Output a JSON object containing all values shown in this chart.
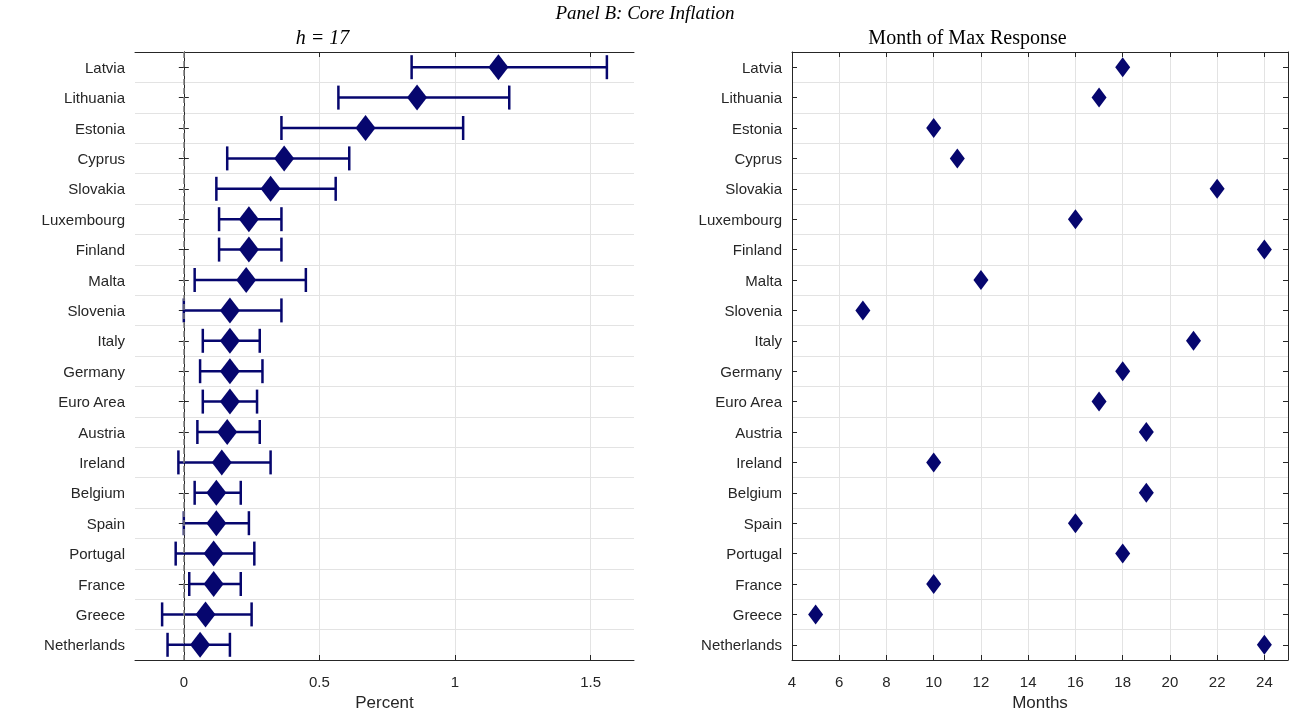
{
  "chart_data": [
    {
      "type": "scatter",
      "title": "h = 17",
      "xlabel": "Percent",
      "orientation": "horizontal",
      "annotations": [
        "Panel B: Core Inflation"
      ],
      "categories": [
        "Latvia",
        "Lithuania",
        "Estonia",
        "Cyprus",
        "Slovakia",
        "Luxembourg",
        "Finland",
        "Malta",
        "Slovenia",
        "Italy",
        "Germany",
        "Euro Area",
        "Austria",
        "Ireland",
        "Belgium",
        "Spain",
        "Portugal",
        "France",
        "Greece",
        "Netherlands"
      ],
      "series": [
        {
          "color": "#06066e",
          "values": [
            1.16,
            0.86,
            0.67,
            0.37,
            0.32,
            0.24,
            0.24,
            0.23,
            0.17,
            0.17,
            0.17,
            0.17,
            0.16,
            0.14,
            0.12,
            0.12,
            0.11,
            0.11,
            0.08,
            0.06
          ],
          "errors": [
            [
              0.84,
              1.56
            ],
            [
              0.57,
              1.2
            ],
            [
              0.36,
              1.03
            ],
            [
              0.16,
              0.61
            ],
            [
              0.12,
              0.56
            ],
            [
              0.13,
              0.36
            ],
            [
              0.13,
              0.36
            ],
            [
              0.04,
              0.45
            ],
            [
              0,
              0.36
            ],
            [
              0.07,
              0.28
            ],
            [
              0.06,
              0.29
            ],
            [
              0.07,
              0.27
            ],
            [
              0.05,
              0.28
            ],
            [
              -0.02,
              0.32
            ],
            [
              0.04,
              0.21
            ],
            [
              0,
              0.24
            ],
            [
              -0.03,
              0.26
            ],
            [
              0.02,
              0.21
            ],
            [
              -0.08,
              0.25
            ],
            [
              -0.06,
              0.17
            ]
          ]
        }
      ],
      "xlim": [
        -0.18,
        1.66
      ],
      "xticks": [
        0,
        0.5,
        1,
        1.5
      ],
      "grid": true,
      "marker": "diamond",
      "ref_lines": [
        {
          "axis": "x",
          "value": 0,
          "color": "#7f7f7f",
          "line_style": "dashed"
        }
      ]
    },
    {
      "type": "scatter",
      "title": "Month of Max Response",
      "xlabel": "Months",
      "orientation": "horizontal",
      "categories": [
        "Latvia",
        "Lithuania",
        "Estonia",
        "Cyprus",
        "Slovakia",
        "Luxembourg",
        "Finland",
        "Malta",
        "Slovenia",
        "Italy",
        "Germany",
        "Euro Area",
        "Austria",
        "Ireland",
        "Belgium",
        "Spain",
        "Portugal",
        "France",
        "Greece",
        "Netherlands"
      ],
      "series": [
        {
          "color": "#06066e",
          "values": [
            18,
            17,
            10,
            11,
            22,
            16,
            24,
            12,
            7,
            21,
            18,
            17,
            19,
            10,
            19,
            16,
            18,
            10,
            5,
            24
          ]
        }
      ],
      "xlim": [
        4,
        25
      ],
      "xticks": [
        4,
        6,
        8,
        10,
        12,
        14,
        16,
        18,
        20,
        22,
        24
      ],
      "grid": true,
      "marker": "diamond"
    }
  ]
}
